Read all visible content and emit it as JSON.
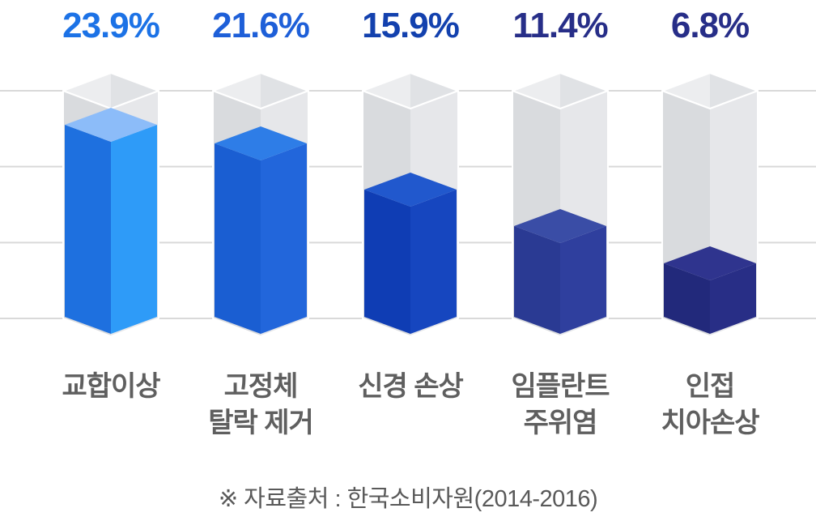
{
  "page": {
    "background": "#FFFFFF"
  },
  "chart_data": {
    "type": "bar",
    "variant": "isometric-3d-column-infographic",
    "title": "",
    "xlabel": "",
    "ylabel": "",
    "unit": "%",
    "categories": [
      "교합이상",
      "고정체\n탈락 제거",
      "신경 손상",
      "임플란트\n주위염",
      "인접\n치아손상"
    ],
    "values": [
      23.9,
      21.6,
      15.9,
      11.4,
      6.8
    ],
    "value_labels": [
      "23.9%",
      "21.6%",
      "15.9%",
      "11.4%",
      "6.8%"
    ],
    "ylim": [
      0,
      28.1
    ],
    "grid": true,
    "gridline_count": 4,
    "legend_position": "none",
    "source": "※ 자료출처 : 한국소비자원(2014-2016)",
    "bar_colors": [
      {
        "top": "#8CBCF9",
        "left": "#1E70DF",
        "right": "#2E9BF8",
        "value_label": "#1C72E6"
      },
      {
        "top": "#2E7DE7",
        "left": "#1A5ED2",
        "right": "#2266DB",
        "value_label": "#1E5FD8"
      },
      {
        "top": "#2158CD",
        "left": "#0F3DB4",
        "right": "#1646BF",
        "value_label": "#1341AE"
      },
      {
        "top": "#3A4DA6",
        "left": "#2A3A93",
        "right": "#2F3F9E",
        "value_label": "#272E88"
      },
      {
        "top": "#2F348E",
        "left": "#22297B",
        "right": "#282E86",
        "value_label": "#272E88"
      }
    ],
    "container_colors": {
      "inner_left": "#ECEDEF",
      "inner_right": "#E0E2E5",
      "front_left": "#D9DBDE",
      "front_right": "#E6E7EA",
      "rim_outline": "#FFFFFF"
    },
    "gridline_color": "#D9D9D9",
    "category_label_color": "#5F5F5F",
    "source_color": "#595959"
  }
}
